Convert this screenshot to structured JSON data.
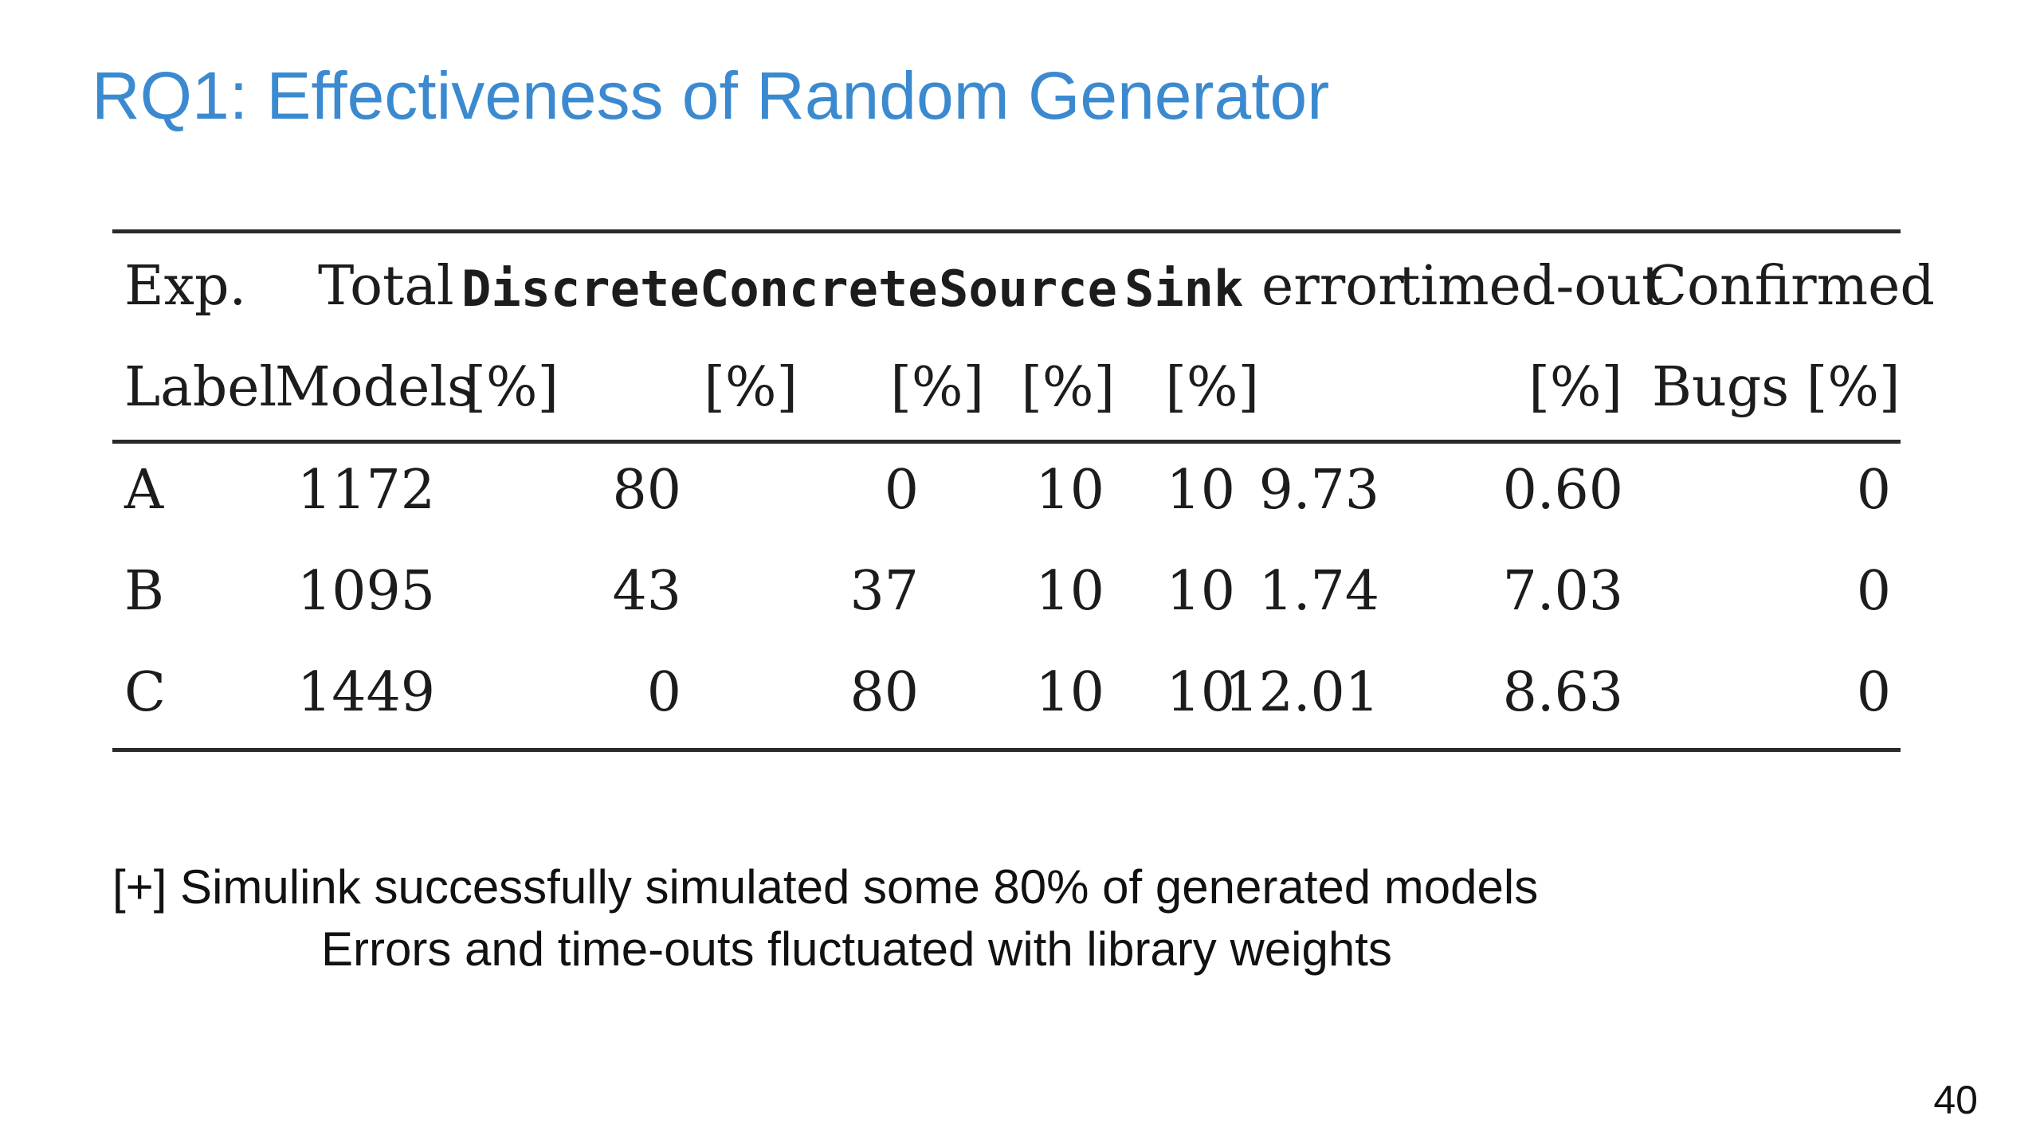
{
  "slide": {
    "title": "RQ1: Effectiveness of Random Generator",
    "page_number": "40"
  },
  "table": {
    "header_row1": {
      "exp": "Exp.",
      "total": "Total",
      "discrete": "Discrete",
      "concrete": "Concrete",
      "source": "Source",
      "sink": "Sink",
      "error": "error",
      "timedout": "timed-out",
      "confirmed": "Confirmed"
    },
    "header_row2": {
      "label": "Label",
      "models": "Models",
      "discrete": "[%]",
      "concrete": "[%]",
      "source": "[%]",
      "sink": "[%]",
      "error": "[%]",
      "timedout": "[%]",
      "confirmed": "Bugs [%]"
    },
    "rows": [
      {
        "exp": "A",
        "total": "1172",
        "discrete": "80",
        "concrete": "0",
        "source": "10",
        "sink": "10",
        "error": "9.73",
        "timedout": "0.60",
        "confirmed": "0"
      },
      {
        "exp": "B",
        "total": "1095",
        "discrete": "43",
        "concrete": "37",
        "source": "10",
        "sink": "10",
        "error": "1.74",
        "timedout": "7.03",
        "confirmed": "0"
      },
      {
        "exp": "C",
        "total": "1449",
        "discrete": "0",
        "concrete": "80",
        "source": "10",
        "sink": "10",
        "error": "12.01",
        "timedout": "8.63",
        "confirmed": "0"
      }
    ]
  },
  "notes": {
    "line1": "[+] Simulink successfully simulated some 80% of generated models",
    "line2": "Errors and time-outs fluctuated with library weights"
  }
}
